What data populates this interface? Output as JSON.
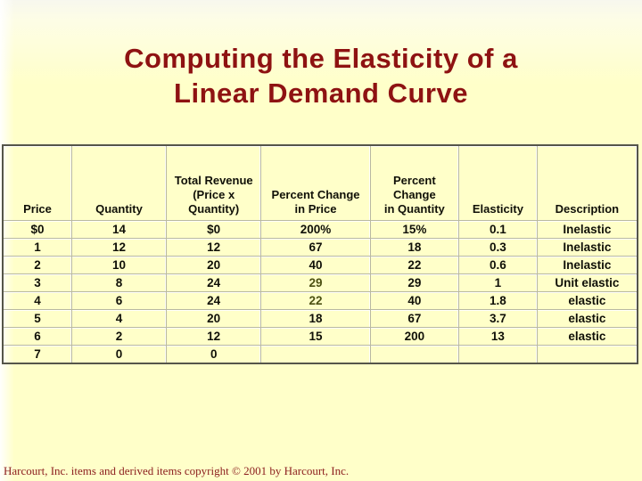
{
  "slide": {
    "title_lines": [
      "Computing the Elasticity of a",
      "Linear Demand Curve"
    ],
    "footer": "Harcourt, Inc. items and derived items copyright © 2001 by Harcourt, Inc."
  },
  "colors": {
    "background": "#ffffc9",
    "title_text": "#8e1212",
    "table_text": "#101008",
    "highlight_text": "#4c5012",
    "footer_text": "#8b1d1d",
    "table_outer_border": "#55554a",
    "table_grid": "#b9b9a0"
  },
  "table": {
    "columns": [
      {
        "key": "price",
        "label": "Price",
        "width_pct": 10.8
      },
      {
        "key": "quantity",
        "label": "Quantity",
        "width_pct": 14.9
      },
      {
        "key": "total-revenue",
        "label": "Total Revenue\n(Price x\nQuantity)",
        "width_pct": 15.0
      },
      {
        "key": "percent-change-in-price",
        "label": "Percent Change\nin Price",
        "width_pct": 17.2
      },
      {
        "key": "percent-change-in-quantity",
        "label": "Percent\nChange\nin Quantity",
        "width_pct": 14.0
      },
      {
        "key": "elasticity",
        "label": "Elasticity",
        "width_pct": 12.3
      },
      {
        "key": "description",
        "label": "Description",
        "width_pct": 15.8
      }
    ],
    "rows": [
      [
        "$0",
        "14",
        "$0",
        "200%",
        "15%",
        "0.1",
        "Inelastic"
      ],
      [
        "1",
        "12",
        "12",
        "67",
        "18",
        "0.3",
        "Inelastic"
      ],
      [
        "2",
        "10",
        "20",
        "40",
        "22",
        "0.6",
        "Inelastic"
      ],
      [
        "3",
        "8",
        "24",
        "29",
        "29",
        "1",
        "Unit elastic"
      ],
      [
        "4",
        "6",
        "24",
        "22",
        "40",
        "1.8",
        "elastic"
      ],
      [
        "5",
        "4",
        "20",
        "18",
        "67",
        "3.7",
        "elastic"
      ],
      [
        "6",
        "2",
        "12",
        "15",
        "200",
        "13",
        "elastic"
      ],
      [
        "7",
        "0",
        "0",
        "",
        "",
        "",
        ""
      ]
    ],
    "highlight_cells": [
      [
        3,
        3
      ],
      [
        4,
        3
      ]
    ]
  }
}
